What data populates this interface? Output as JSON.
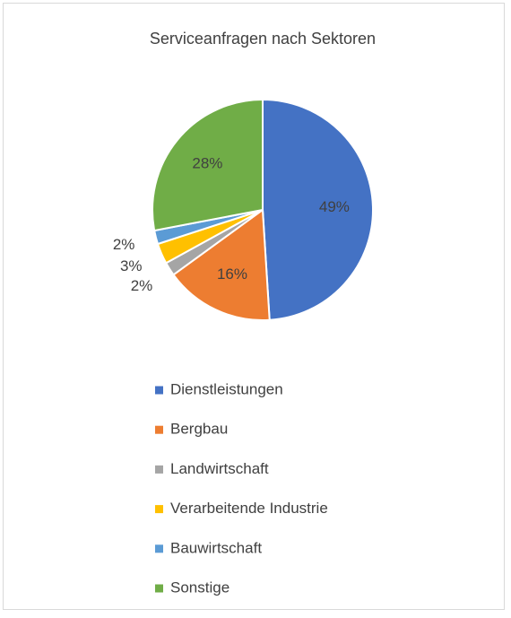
{
  "chart_data": {
    "type": "pie",
    "title": "Serviceanfragen nach Sektoren",
    "categories": [
      "Dienstleistungen",
      "Bergbau",
      "Landwirtschaft",
      "Verarbeitende Industrie",
      "Bauwirtschaft",
      "Sonstige"
    ],
    "values": [
      49,
      16,
      2,
      3,
      2,
      28
    ],
    "value_labels": [
      "49%",
      "16%",
      "2%",
      "3%",
      "2%",
      "28%"
    ],
    "colors": [
      "#4472c4",
      "#ed7d31",
      "#a5a5a5",
      "#ffc000",
      "#5b9bd5",
      "#70ad47"
    ],
    "legend": "bottom"
  }
}
